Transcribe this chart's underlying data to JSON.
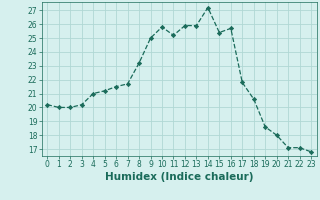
{
  "x": [
    0,
    1,
    2,
    3,
    4,
    5,
    6,
    7,
    8,
    9,
    10,
    11,
    12,
    13,
    14,
    15,
    16,
    17,
    18,
    19,
    20,
    21,
    22,
    23
  ],
  "y": [
    20.2,
    20.0,
    20.0,
    20.2,
    21.0,
    21.2,
    21.5,
    21.7,
    23.2,
    25.0,
    25.8,
    25.2,
    25.9,
    25.9,
    27.2,
    25.4,
    25.7,
    21.8,
    20.6,
    18.6,
    18.0,
    17.1,
    17.1,
    16.8
  ],
  "line_color": "#1a6b5a",
  "marker": "D",
  "marker_size": 2.2,
  "bg_color": "#d6f0ee",
  "grid_color": "#b0d8d4",
  "xlabel": "Humidex (Indice chaleur)",
  "ylim": [
    16.5,
    27.6
  ],
  "yticks": [
    17,
    18,
    19,
    20,
    21,
    22,
    23,
    24,
    25,
    26,
    27
  ],
  "xlim": [
    -0.5,
    23.5
  ],
  "xticks": [
    0,
    1,
    2,
    3,
    4,
    5,
    6,
    7,
    8,
    9,
    10,
    11,
    12,
    13,
    14,
    15,
    16,
    17,
    18,
    19,
    20,
    21,
    22,
    23
  ],
  "tick_fontsize": 5.5,
  "xlabel_fontsize": 7.5,
  "linewidth": 0.9
}
